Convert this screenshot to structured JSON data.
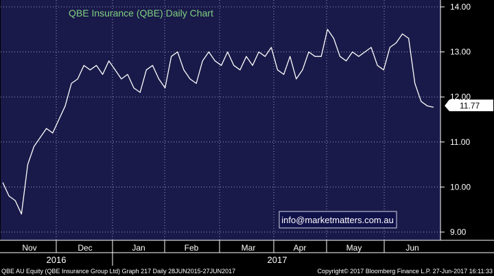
{
  "chart_data": {
    "type": "line",
    "title": "QBE Insurance (QBE) Daily Chart",
    "ylim": [
      8.8,
      14.2
    ],
    "y_ticks": [
      "14.00",
      "13.00",
      "12.00",
      "11.00",
      "10.00",
      "9.00"
    ],
    "y_tick_values": [
      14,
      13,
      12,
      11,
      10,
      9
    ],
    "months": [
      "Nov",
      "Dec",
      "Jan",
      "Feb",
      "Mar",
      "Apr",
      "May",
      "Jun"
    ],
    "years": [
      "2016",
      "2017"
    ],
    "last_price": "11.77",
    "watermark": "info@marketmatters.com.au",
    "series": [
      {
        "x": [
          "Oct 20",
          "Oct 24",
          "Oct 28",
          "Nov 1",
          "Nov 3",
          "Nov 7",
          "Nov 10",
          "Nov 14",
          "Nov 17",
          "Nov 21",
          "Nov 24",
          "Nov 28",
          "Dec 1",
          "Dec 5",
          "Dec 8",
          "Dec 12",
          "Dec 15",
          "Dec 19",
          "Dec 22",
          "Dec 27",
          "Dec 30",
          "Jan 4",
          "Jan 9",
          "Jan 12",
          "Jan 16",
          "Jan 19",
          "Jan 23",
          "Jan 26",
          "Jan 31",
          "Feb 3",
          "Feb 7",
          "Feb 10",
          "Feb 14",
          "Feb 17",
          "Feb 21",
          "Feb 24",
          "Feb 28",
          "Mar 3",
          "Mar 7",
          "Mar 10",
          "Mar 14",
          "Mar 17",
          "Mar 21",
          "Mar 24",
          "Mar 28",
          "Mar 31",
          "Apr 4",
          "Apr 7",
          "Apr 11",
          "Apr 14",
          "Apr 19",
          "Apr 24",
          "Apr 27",
          "May 1",
          "May 4",
          "May 8",
          "May 11",
          "May 15",
          "May 18",
          "May 22",
          "May 25",
          "May 29",
          "Jun 1",
          "Jun 5",
          "Jun 8",
          "Jun 13",
          "Jun 16",
          "Jun 20",
          "Jun 23",
          "Jun 27"
        ],
        "values": [
          10.1,
          9.8,
          9.7,
          9.4,
          10.5,
          10.9,
          11.1,
          11.3,
          11.2,
          11.5,
          11.8,
          12.3,
          12.4,
          12.7,
          12.6,
          12.7,
          12.5,
          12.8,
          12.6,
          12.4,
          12.5,
          12.2,
          12.1,
          12.6,
          12.7,
          12.4,
          12.2,
          12.9,
          13.0,
          12.6,
          12.4,
          12.3,
          12.8,
          13.0,
          12.8,
          12.7,
          13.0,
          12.7,
          12.6,
          12.9,
          12.7,
          13.0,
          12.9,
          13.1,
          12.6,
          12.5,
          12.9,
          12.4,
          12.6,
          13.0,
          12.9,
          12.9,
          13.5,
          13.3,
          12.9,
          12.8,
          13.0,
          12.9,
          13.0,
          13.1,
          12.7,
          12.6,
          13.1,
          13.2,
          13.4,
          13.3,
          12.3,
          11.9,
          11.8,
          11.77
        ]
      }
    ]
  },
  "footer": {
    "left": "QBE AU Equity (QBE Insurance Group Ltd) Graph 217  Daily 28JUN2015-27JUN2017",
    "right": "Copyright© 2017 Bloomberg Finance L.P.       27-Jun-2017 16:11:33"
  },
  "colors": {
    "plot_bg": "#1a1a4a",
    "grid": "#9aa0c8",
    "title": "#7fd07f",
    "price": "#ffffff",
    "watermark_border": "#d8d8e8"
  }
}
